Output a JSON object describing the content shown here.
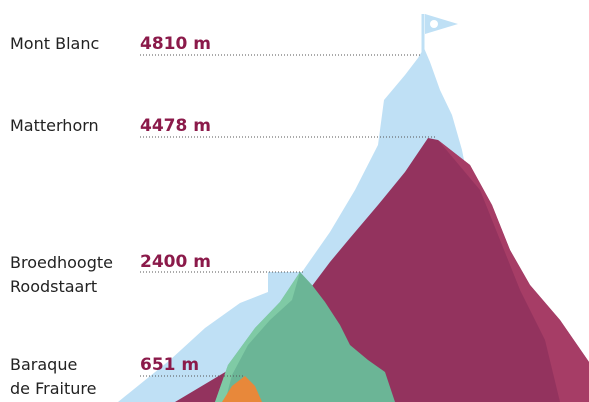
{
  "peaks": [
    {
      "name": "Mont Blanc",
      "height": "4810 m"
    },
    {
      "name": "Matterhorn",
      "height": "4478 m"
    },
    {
      "name": "Broedhoogte\nRoodstaart",
      "height": "2400 m"
    },
    {
      "name": "Baraque\nde Fraiture",
      "height": "651 m"
    }
  ]
}
